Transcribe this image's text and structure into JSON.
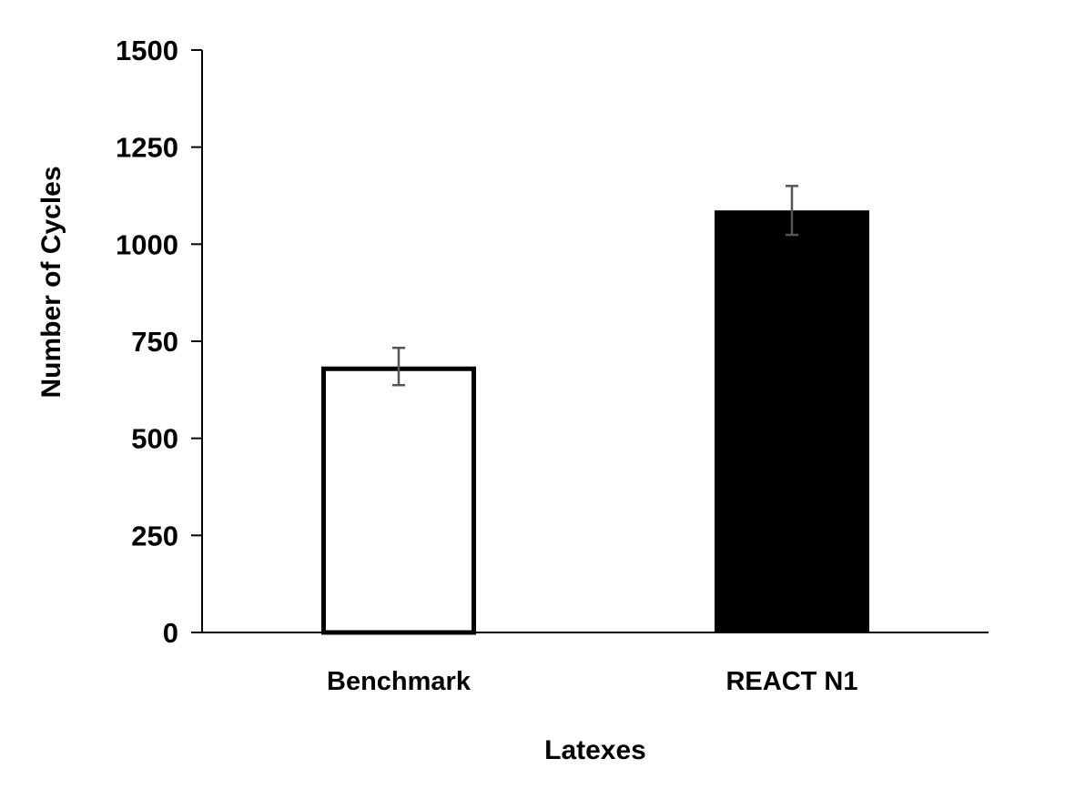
{
  "chart_data": {
    "type": "bar",
    "title": "",
    "xlabel": "Latexes",
    "ylabel": "Number of Cycles",
    "ylim": [
      0,
      1500
    ],
    "yticks": [
      0,
      250,
      500,
      750,
      1000,
      1250,
      1500
    ],
    "categories": [
      "Benchmark",
      "REACT N1"
    ],
    "values": [
      685,
      1087
    ],
    "errors": [
      48,
      63
    ],
    "bar_colors": [
      "#ffffff",
      "#000000"
    ],
    "bar_edge_color": "#000000",
    "error_bar_color": "#555555",
    "grid": false,
    "legend": "none"
  }
}
